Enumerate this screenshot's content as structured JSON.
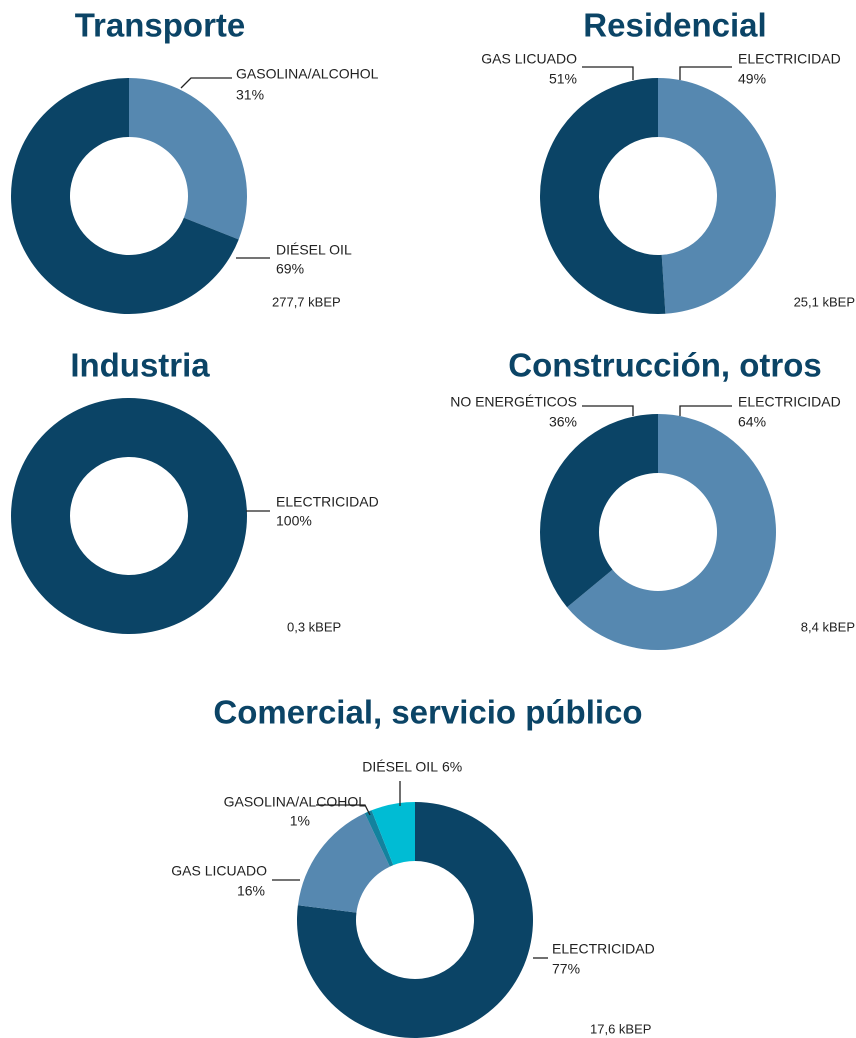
{
  "chart_data": [
    {
      "type": "pie",
      "title": "Transporte",
      "categories": [
        "GASOLINA/ALCOHOL",
        "DIÉSEL OIL"
      ],
      "values": [
        31,
        69
      ],
      "value_labels": [
        "31%",
        "69%"
      ],
      "colors": [
        "#5688b0",
        "#0b4466"
      ],
      "annotation": "277,7 kBEP"
    },
    {
      "type": "pie",
      "title": "Residencial",
      "categories": [
        "ELECTRICIDAD",
        "GAS LICUADO"
      ],
      "values": [
        49,
        51
      ],
      "value_labels": [
        "49%",
        "51%"
      ],
      "colors": [
        "#5688b0",
        "#0b4466"
      ],
      "annotation": "25,1 kBEP"
    },
    {
      "type": "pie",
      "title": "Industria",
      "categories": [
        "ELECTRICIDAD"
      ],
      "values": [
        100
      ],
      "value_labels": [
        "100%"
      ],
      "colors": [
        "#0b4466"
      ],
      "annotation": "0,3 kBEP"
    },
    {
      "type": "pie",
      "title": "Construcción, otros",
      "categories": [
        "ELECTRICIDAD",
        "NO ENERGÉTICOS"
      ],
      "values": [
        64,
        36
      ],
      "value_labels": [
        "64%",
        "36%"
      ],
      "colors": [
        "#5688b0",
        "#0b4466"
      ],
      "annotation": "8,4 kBEP"
    },
    {
      "type": "pie",
      "title": "Comercial, servicio público",
      "categories": [
        "ELECTRICIDAD",
        "GAS LICUADO",
        "GASOLINA/ALCOHOL",
        "DIÉSEL OIL"
      ],
      "values": [
        77,
        16,
        1,
        6
      ],
      "value_labels": [
        "77%",
        "16%",
        "1%",
        "6%"
      ],
      "colors": [
        "#0b4466",
        "#5688b0",
        "#13829e",
        "#00bcd4"
      ],
      "annotation": "17,6 kBEP"
    }
  ]
}
